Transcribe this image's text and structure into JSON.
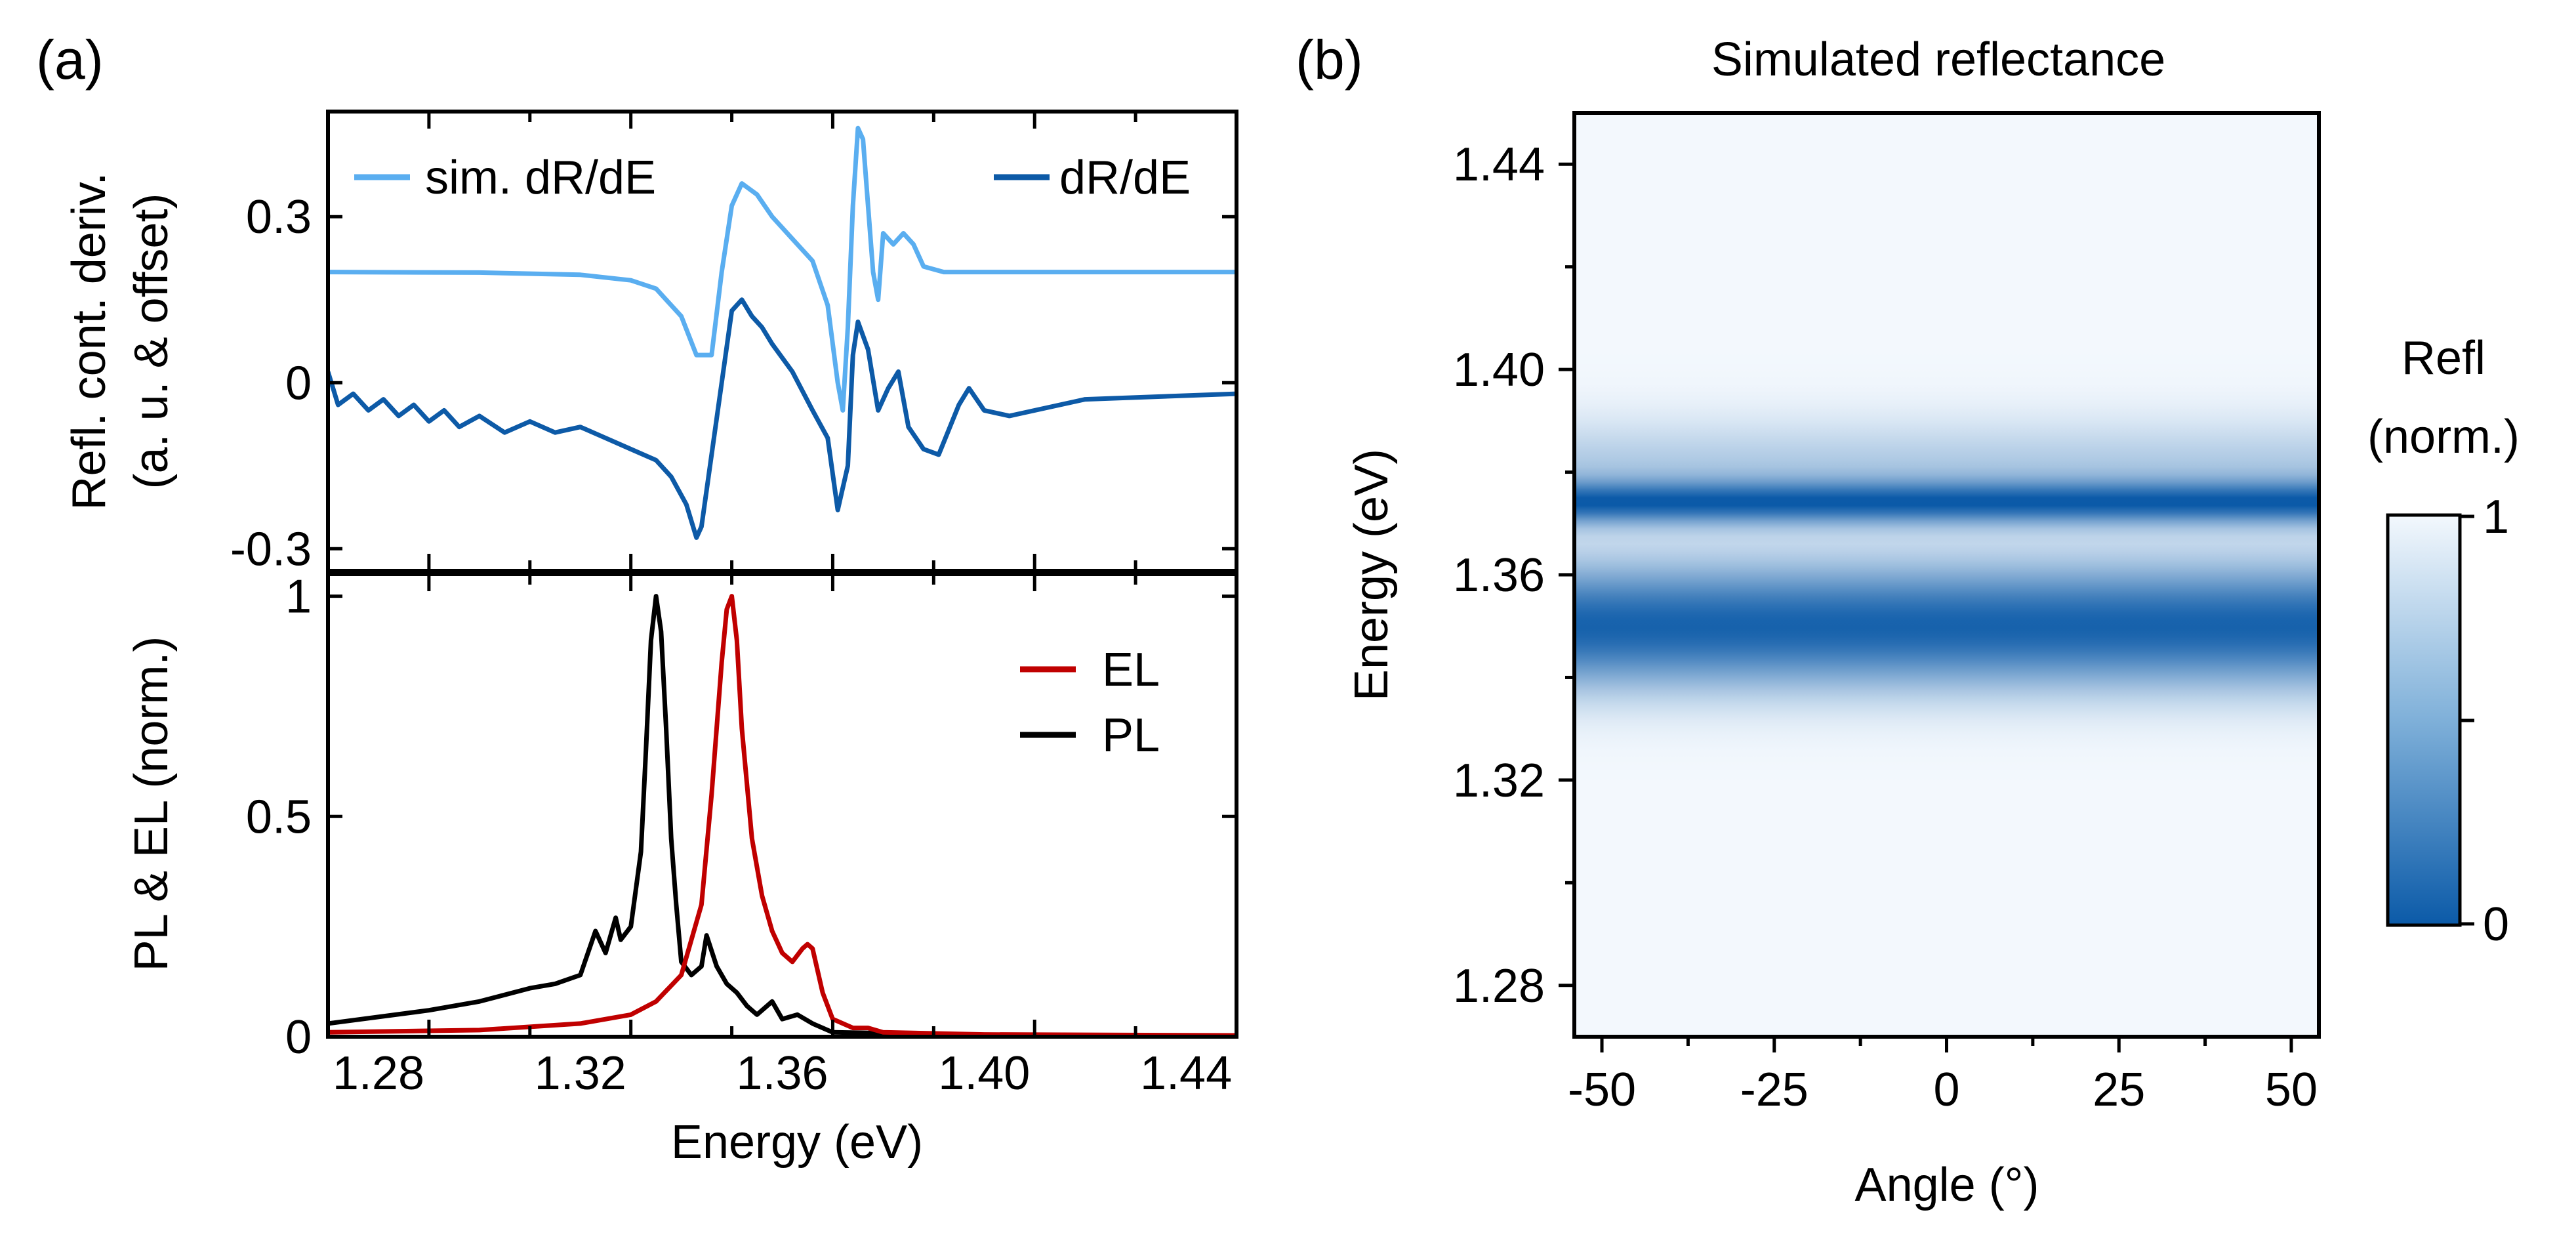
{
  "panel_labels": {
    "a": "(a)",
    "b": "(b)"
  },
  "colors": {
    "sim_dRdE": "#5aaef0",
    "dRdE": "#0d5aa7",
    "EL": "#c00000",
    "PL": "#000000",
    "map_dark": "#0b5aa8",
    "map_light": "#f3f8fd"
  },
  "chart_data": [
    {
      "id": "a-top",
      "type": "line",
      "ylabel_line1": "Refl. cont. deriv.",
      "ylabel_line2": "(a. u. & offset)",
      "xlim": [
        1.27,
        1.45
      ],
      "ylim": [
        -0.34,
        0.49
      ],
      "yticks": [
        -0.3,
        0,
        0.3
      ],
      "ytick_labels": [
        "-0.3",
        "0",
        "0.3"
      ],
      "legend": {
        "left": "sim. dR/dE",
        "right": "dR/dE",
        "placement": "top"
      },
      "series": [
        {
          "name": "sim. dR/dE",
          "x": [
            1.27,
            1.3,
            1.32,
            1.33,
            1.335,
            1.34,
            1.343,
            1.346,
            1.348,
            1.35,
            1.352,
            1.355,
            1.358,
            1.362,
            1.366,
            1.369,
            1.371,
            1.372,
            1.373,
            1.374,
            1.375,
            1.376,
            1.378,
            1.379,
            1.38,
            1.381,
            1.382,
            1.384,
            1.386,
            1.388,
            1.392,
            1.4,
            1.42,
            1.45
          ],
          "values": [
            0.2,
            0.199,
            0.195,
            0.185,
            0.17,
            0.12,
            0.05,
            0.05,
            0.2,
            0.32,
            0.36,
            0.34,
            0.3,
            0.26,
            0.22,
            0.14,
            0.0,
            -0.05,
            0.1,
            0.32,
            0.46,
            0.44,
            0.2,
            0.15,
            0.27,
            0.26,
            0.25,
            0.27,
            0.25,
            0.21,
            0.2,
            0.2,
            0.2,
            0.2
          ]
        },
        {
          "name": "dR/dE",
          "x": [
            1.27,
            1.272,
            1.275,
            1.278,
            1.281,
            1.284,
            1.287,
            1.29,
            1.293,
            1.296,
            1.3,
            1.305,
            1.31,
            1.315,
            1.32,
            1.325,
            1.33,
            1.335,
            1.338,
            1.341,
            1.343,
            1.344,
            1.346,
            1.348,
            1.35,
            1.352,
            1.354,
            1.356,
            1.358,
            1.362,
            1.366,
            1.369,
            1.371,
            1.373,
            1.374,
            1.375,
            1.377,
            1.379,
            1.381,
            1.383,
            1.385,
            1.388,
            1.391,
            1.395,
            1.397,
            1.4,
            1.405,
            1.42,
            1.45
          ],
          "values": [
            0.02,
            -0.04,
            -0.02,
            -0.05,
            -0.03,
            -0.06,
            -0.04,
            -0.07,
            -0.05,
            -0.08,
            -0.06,
            -0.09,
            -0.07,
            -0.09,
            -0.08,
            -0.1,
            -0.12,
            -0.14,
            -0.17,
            -0.22,
            -0.28,
            -0.26,
            -0.13,
            0.0,
            0.13,
            0.15,
            0.12,
            0.1,
            0.07,
            0.02,
            -0.05,
            -0.1,
            -0.23,
            -0.15,
            0.05,
            0.11,
            0.06,
            -0.05,
            -0.01,
            0.02,
            -0.08,
            -0.12,
            -0.13,
            -0.04,
            -0.01,
            -0.05,
            -0.06,
            -0.03,
            -0.02
          ]
        }
      ]
    },
    {
      "id": "a-bottom",
      "type": "line",
      "xlabel": "Energy (eV)",
      "ylabel": "PL & EL (norm.)",
      "xlim": [
        1.27,
        1.45
      ],
      "ylim": [
        0,
        1.05
      ],
      "yticks": [
        0,
        0.5,
        1
      ],
      "ytick_labels": [
        "0",
        "0.5",
        "1"
      ],
      "xticks": [
        1.28,
        1.32,
        1.36,
        1.4,
        1.44
      ],
      "xtick_labels": [
        "1.28",
        "1.32",
        "1.36",
        "1.40",
        "1.44"
      ],
      "legend": {
        "placement": "top-right",
        "entries": [
          "EL",
          "PL"
        ]
      },
      "series": [
        {
          "name": "EL",
          "x": [
            1.27,
            1.3,
            1.32,
            1.33,
            1.335,
            1.34,
            1.344,
            1.346,
            1.348,
            1.349,
            1.35,
            1.351,
            1.352,
            1.354,
            1.356,
            1.358,
            1.36,
            1.362,
            1.364,
            1.365,
            1.366,
            1.368,
            1.37,
            1.374,
            1.377,
            1.38,
            1.4,
            1.45
          ],
          "values": [
            0.01,
            0.015,
            0.03,
            0.05,
            0.08,
            0.14,
            0.3,
            0.55,
            0.85,
            0.97,
            1.0,
            0.9,
            0.7,
            0.45,
            0.32,
            0.24,
            0.19,
            0.17,
            0.2,
            0.21,
            0.2,
            0.1,
            0.04,
            0.02,
            0.02,
            0.01,
            0.005,
            0.003
          ]
        },
        {
          "name": "PL",
          "x": [
            1.27,
            1.29,
            1.3,
            1.31,
            1.315,
            1.32,
            1.323,
            1.325,
            1.327,
            1.328,
            1.33,
            1.332,
            1.333,
            1.334,
            1.335,
            1.336,
            1.337,
            1.338,
            1.339,
            1.34,
            1.342,
            1.344,
            1.345,
            1.347,
            1.349,
            1.351,
            1.353,
            1.355,
            1.358,
            1.36,
            1.363,
            1.366,
            1.37,
            1.4,
            1.45
          ],
          "values": [
            0.03,
            0.06,
            0.08,
            0.11,
            0.12,
            0.14,
            0.24,
            0.19,
            0.27,
            0.22,
            0.25,
            0.42,
            0.65,
            0.9,
            1.0,
            0.92,
            0.7,
            0.45,
            0.3,
            0.17,
            0.14,
            0.16,
            0.23,
            0.16,
            0.12,
            0.1,
            0.07,
            0.05,
            0.08,
            0.04,
            0.05,
            0.03,
            0.01,
            0.004,
            0.002
          ]
        }
      ]
    },
    {
      "id": "b-map",
      "type": "heatmap",
      "title": "Simulated reflectance",
      "xlabel": "Angle (°)",
      "ylabel": "Energy (eV)",
      "xlim": [
        -54,
        54
      ],
      "ylim": [
        1.27,
        1.45
      ],
      "xticks": [
        -50,
        -25,
        0,
        25,
        50
      ],
      "xtick_labels": [
        "-50",
        "-25",
        "0",
        "25",
        "50"
      ],
      "yticks": [
        1.28,
        1.32,
        1.36,
        1.4,
        1.44
      ],
      "ytick_labels": [
        "1.28",
        "1.32",
        "1.36",
        "1.40",
        "1.44"
      ],
      "colorbar": {
        "label_line1": "Refl",
        "label_line2": "(norm.)",
        "min_label": "0",
        "max_label": "1",
        "range": [
          0,
          1
        ]
      },
      "bands": [
        {
          "center_eV": 1.35,
          "width_eV": 0.012,
          "depth": 0.95
        },
        {
          "center_eV": 1.374,
          "width_eV": 0.004,
          "depth": 0.8
        },
        {
          "center_eV": 1.38,
          "width_eV": 0.01,
          "depth": 0.3
        }
      ]
    }
  ]
}
